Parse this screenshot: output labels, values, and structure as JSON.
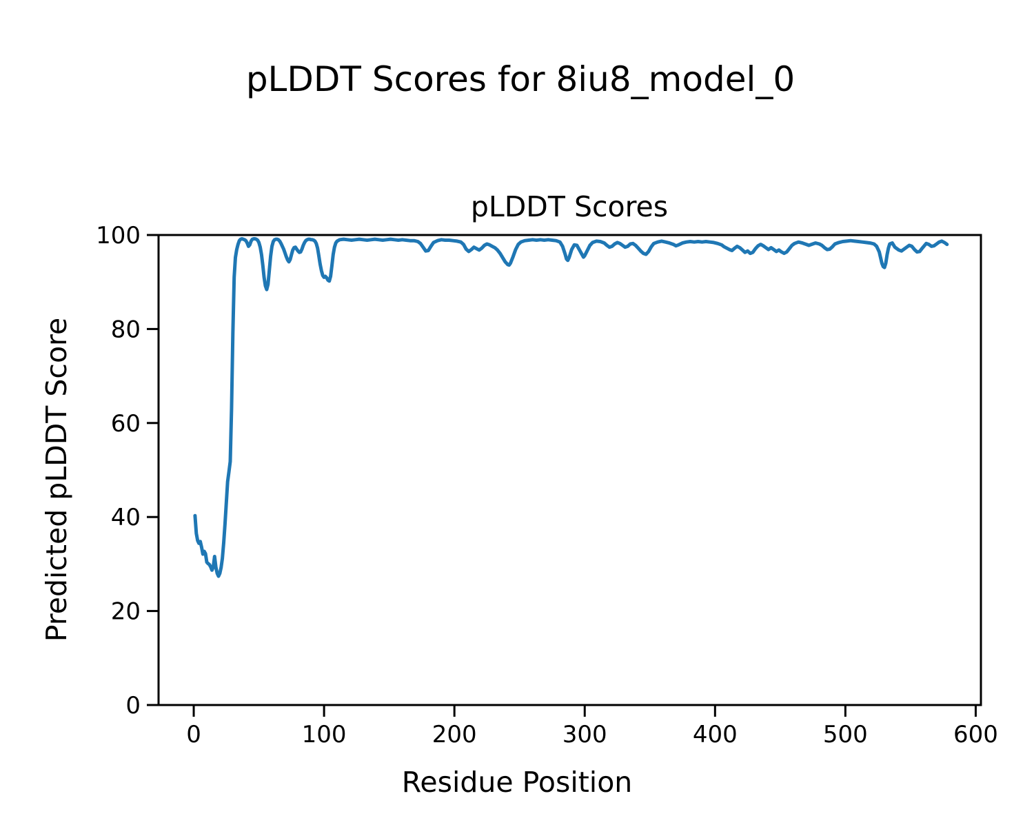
{
  "figure": {
    "suptitle": "pLDDT Scores for 8iu8_model_0"
  },
  "chart_data": {
    "type": "line",
    "title": "pLDDT Scores",
    "xlabel": "Residue Position",
    "ylabel": "Predicted pLDDT Score",
    "xlim": [
      -27,
      604
    ],
    "ylim": [
      0,
      100
    ],
    "xticks": [
      0,
      100,
      200,
      300,
      400,
      500,
      600
    ],
    "yticks": [
      0,
      20,
      40,
      60,
      80,
      100
    ],
    "grid": false,
    "legend": "none",
    "line_color": "#1f77b4",
    "axis_color": "#000000",
    "series": [
      {
        "name": "pLDDT",
        "points": [
          [
            1,
            40.3
          ],
          [
            2,
            36.5
          ],
          [
            3,
            35.0
          ],
          [
            4,
            34.4
          ],
          [
            5,
            34.8
          ],
          [
            6,
            33.6
          ],
          [
            7,
            32.1
          ],
          [
            8,
            32.7
          ],
          [
            9,
            32.2
          ],
          [
            10,
            30.4
          ],
          [
            11,
            30.1
          ],
          [
            12,
            29.9
          ],
          [
            13,
            29.4
          ],
          [
            14,
            28.7
          ],
          [
            15,
            29.4
          ],
          [
            16,
            31.6
          ],
          [
            17,
            29.3
          ],
          [
            18,
            28.0
          ],
          [
            19,
            27.4
          ],
          [
            20,
            28.0
          ],
          [
            21,
            29.3
          ],
          [
            22,
            31.2
          ],
          [
            23,
            34.5
          ],
          [
            24,
            38.5
          ],
          [
            25,
            43.0
          ],
          [
            26,
            47.5
          ],
          [
            27,
            49.6
          ],
          [
            28,
            51.8
          ],
          [
            29,
            63.0
          ],
          [
            30,
            79.0
          ],
          [
            31,
            91.0
          ],
          [
            32,
            95.2
          ],
          [
            33,
            96.9
          ],
          [
            34,
            98.0
          ],
          [
            35,
            98.8
          ],
          [
            36,
            99.1
          ],
          [
            37,
            99.2
          ],
          [
            38,
            99.1
          ],
          [
            39,
            99.0
          ],
          [
            40,
            98.8
          ],
          [
            41,
            98.3
          ],
          [
            42,
            97.6
          ],
          [
            43,
            97.9
          ],
          [
            44,
            98.7
          ],
          [
            45,
            99.1
          ],
          [
            46,
            99.2
          ],
          [
            47,
            99.2
          ],
          [
            48,
            99.1
          ],
          [
            49,
            98.9
          ],
          [
            50,
            98.4
          ],
          [
            51,
            97.4
          ],
          [
            52,
            95.8
          ],
          [
            53,
            93.5
          ],
          [
            54,
            91.0
          ],
          [
            55,
            89.2
          ],
          [
            56,
            88.4
          ],
          [
            57,
            89.5
          ],
          [
            58,
            92.5
          ],
          [
            59,
            95.5
          ],
          [
            60,
            97.6
          ],
          [
            61,
            98.6
          ],
          [
            62,
            99.0
          ],
          [
            63,
            99.1
          ],
          [
            64,
            99.1
          ],
          [
            65,
            99.0
          ],
          [
            66,
            98.7
          ],
          [
            67,
            98.2
          ],
          [
            68,
            97.6
          ],
          [
            69,
            97.0
          ],
          [
            70,
            96.2
          ],
          [
            71,
            95.4
          ],
          [
            72,
            94.7
          ],
          [
            73,
            94.3
          ],
          [
            74,
            94.8
          ],
          [
            75,
            95.8
          ],
          [
            76,
            96.8
          ],
          [
            77,
            97.3
          ],
          [
            78,
            97.4
          ],
          [
            79,
            97.0
          ],
          [
            80,
            96.6
          ],
          [
            81,
            96.3
          ],
          [
            82,
            96.4
          ],
          [
            83,
            97.0
          ],
          [
            84,
            97.8
          ],
          [
            85,
            98.4
          ],
          [
            86,
            98.8
          ],
          [
            87,
            99.0
          ],
          [
            88,
            99.1
          ],
          [
            89,
            99.1
          ],
          [
            90,
            99.0
          ],
          [
            91,
            99.0
          ],
          [
            92,
            98.9
          ],
          [
            93,
            98.7
          ],
          [
            94,
            98.2
          ],
          [
            95,
            97.2
          ],
          [
            96,
            95.6
          ],
          [
            97,
            93.8
          ],
          [
            98,
            92.4
          ],
          [
            99,
            91.4
          ],
          [
            100,
            91.0
          ],
          [
            101,
            91.2
          ],
          [
            102,
            90.9
          ],
          [
            103,
            90.4
          ],
          [
            104,
            90.2
          ],
          [
            105,
            91.2
          ],
          [
            106,
            93.5
          ],
          [
            107,
            95.8
          ],
          [
            108,
            97.4
          ],
          [
            109,
            98.3
          ],
          [
            110,
            98.7
          ],
          [
            112,
            99.0
          ],
          [
            115,
            99.1
          ],
          [
            118,
            99.0
          ],
          [
            121,
            98.9
          ],
          [
            124,
            99.0
          ],
          [
            127,
            99.1
          ],
          [
            130,
            99.0
          ],
          [
            133,
            98.9
          ],
          [
            136,
            99.0
          ],
          [
            139,
            99.1
          ],
          [
            142,
            99.0
          ],
          [
            145,
            98.9
          ],
          [
            148,
            99.0
          ],
          [
            151,
            99.1
          ],
          [
            154,
            99.0
          ],
          [
            157,
            98.9
          ],
          [
            160,
            99.0
          ],
          [
            163,
            98.9
          ],
          [
            166,
            98.8
          ],
          [
            169,
            98.8
          ],
          [
            172,
            98.6
          ],
          [
            174,
            98.2
          ],
          [
            176,
            97.4
          ],
          [
            178,
            96.6
          ],
          [
            180,
            96.7
          ],
          [
            182,
            97.6
          ],
          [
            184,
            98.4
          ],
          [
            187,
            98.8
          ],
          [
            190,
            99.0
          ],
          [
            193,
            98.9
          ],
          [
            196,
            98.9
          ],
          [
            199,
            98.8
          ],
          [
            202,
            98.7
          ],
          [
            205,
            98.5
          ],
          [
            207,
            98.0
          ],
          [
            209,
            97.0
          ],
          [
            211,
            96.5
          ],
          [
            213,
            96.9
          ],
          [
            215,
            97.4
          ],
          [
            217,
            97.1
          ],
          [
            219,
            96.8
          ],
          [
            221,
            97.2
          ],
          [
            223,
            97.8
          ],
          [
            225,
            98.1
          ],
          [
            227,
            97.9
          ],
          [
            229,
            97.6
          ],
          [
            231,
            97.3
          ],
          [
            233,
            96.8
          ],
          [
            235,
            96.1
          ],
          [
            237,
            95.2
          ],
          [
            239,
            94.3
          ],
          [
            241,
            93.7
          ],
          [
            242,
            93.6
          ],
          [
            243,
            94.0
          ],
          [
            245,
            95.4
          ],
          [
            247,
            96.9
          ],
          [
            249,
            98.0
          ],
          [
            251,
            98.5
          ],
          [
            254,
            98.8
          ],
          [
            257,
            98.9
          ],
          [
            260,
            99.0
          ],
          [
            263,
            98.9
          ],
          [
            266,
            99.0
          ],
          [
            269,
            98.9
          ],
          [
            272,
            99.0
          ],
          [
            275,
            98.9
          ],
          [
            278,
            98.8
          ],
          [
            281,
            98.5
          ],
          [
            283,
            97.6
          ],
          [
            285,
            95.9
          ],
          [
            286,
            94.9
          ],
          [
            287,
            94.6
          ],
          [
            288,
            95.2
          ],
          [
            290,
            96.9
          ],
          [
            292,
            97.9
          ],
          [
            294,
            97.8
          ],
          [
            296,
            96.8
          ],
          [
            298,
            95.8
          ],
          [
            299,
            95.3
          ],
          [
            300,
            95.6
          ],
          [
            302,
            96.7
          ],
          [
            304,
            97.8
          ],
          [
            306,
            98.4
          ],
          [
            309,
            98.7
          ],
          [
            312,
            98.6
          ],
          [
            315,
            98.3
          ],
          [
            317,
            97.8
          ],
          [
            319,
            97.4
          ],
          [
            321,
            97.6
          ],
          [
            323,
            98.1
          ],
          [
            325,
            98.4
          ],
          [
            327,
            98.2
          ],
          [
            329,
            97.8
          ],
          [
            331,
            97.4
          ],
          [
            333,
            97.6
          ],
          [
            335,
            98.1
          ],
          [
            337,
            98.2
          ],
          [
            339,
            97.8
          ],
          [
            341,
            97.2
          ],
          [
            343,
            96.6
          ],
          [
            345,
            96.1
          ],
          [
            347,
            95.9
          ],
          [
            349,
            96.5
          ],
          [
            351,
            97.5
          ],
          [
            353,
            98.2
          ],
          [
            356,
            98.5
          ],
          [
            359,
            98.7
          ],
          [
            362,
            98.5
          ],
          [
            365,
            98.3
          ],
          [
            368,
            98.0
          ],
          [
            370,
            97.7
          ],
          [
            372,
            97.9
          ],
          [
            375,
            98.3
          ],
          [
            378,
            98.5
          ],
          [
            381,
            98.6
          ],
          [
            384,
            98.5
          ],
          [
            387,
            98.6
          ],
          [
            390,
            98.5
          ],
          [
            393,
            98.6
          ],
          [
            396,
            98.5
          ],
          [
            399,
            98.4
          ],
          [
            402,
            98.2
          ],
          [
            405,
            97.9
          ],
          [
            407,
            97.5
          ],
          [
            409,
            97.2
          ],
          [
            411,
            96.9
          ],
          [
            413,
            96.7
          ],
          [
            415,
            97.2
          ],
          [
            417,
            97.6
          ],
          [
            419,
            97.3
          ],
          [
            421,
            96.8
          ],
          [
            423,
            96.3
          ],
          [
            425,
            96.6
          ],
          [
            427,
            96.1
          ],
          [
            429,
            96.3
          ],
          [
            431,
            97.1
          ],
          [
            433,
            97.7
          ],
          [
            435,
            98.0
          ],
          [
            437,
            97.7
          ],
          [
            439,
            97.3
          ],
          [
            441,
            96.9
          ],
          [
            443,
            97.3
          ],
          [
            445,
            96.9
          ],
          [
            447,
            96.5
          ],
          [
            449,
            96.8
          ],
          [
            451,
            96.4
          ],
          [
            453,
            96.1
          ],
          [
            455,
            96.4
          ],
          [
            457,
            97.1
          ],
          [
            459,
            97.8
          ],
          [
            461,
            98.2
          ],
          [
            464,
            98.5
          ],
          [
            467,
            98.3
          ],
          [
            470,
            98.0
          ],
          [
            472,
            97.8
          ],
          [
            474,
            98.0
          ],
          [
            477,
            98.3
          ],
          [
            480,
            98.1
          ],
          [
            482,
            97.8
          ],
          [
            484,
            97.3
          ],
          [
            486,
            96.9
          ],
          [
            488,
            97.0
          ],
          [
            490,
            97.5
          ],
          [
            492,
            98.1
          ],
          [
            495,
            98.4
          ],
          [
            498,
            98.6
          ],
          [
            501,
            98.7
          ],
          [
            504,
            98.8
          ],
          [
            507,
            98.7
          ],
          [
            510,
            98.6
          ],
          [
            513,
            98.5
          ],
          [
            516,
            98.4
          ],
          [
            519,
            98.3
          ],
          [
            522,
            98.1
          ],
          [
            524,
            97.6
          ],
          [
            526,
            96.4
          ],
          [
            527,
            95.2
          ],
          [
            528,
            94.0
          ],
          [
            529,
            93.3
          ],
          [
            530,
            93.1
          ],
          [
            531,
            94.0
          ],
          [
            532,
            95.8
          ],
          [
            533,
            97.2
          ],
          [
            534,
            98.1
          ],
          [
            536,
            98.3
          ],
          [
            538,
            97.4
          ],
          [
            541,
            96.8
          ],
          [
            543,
            96.6
          ],
          [
            546,
            97.2
          ],
          [
            549,
            97.8
          ],
          [
            551,
            97.6
          ],
          [
            553,
            96.9
          ],
          [
            555,
            96.4
          ],
          [
            557,
            96.5
          ],
          [
            559,
            97.2
          ],
          [
            562,
            98.2
          ],
          [
            564,
            98.0
          ],
          [
            566,
            97.6
          ],
          [
            568,
            97.7
          ],
          [
            570,
            98.1
          ],
          [
            572,
            98.5
          ],
          [
            574,
            98.7
          ],
          [
            576,
            98.4
          ],
          [
            578,
            98.0
          ]
        ]
      }
    ]
  }
}
